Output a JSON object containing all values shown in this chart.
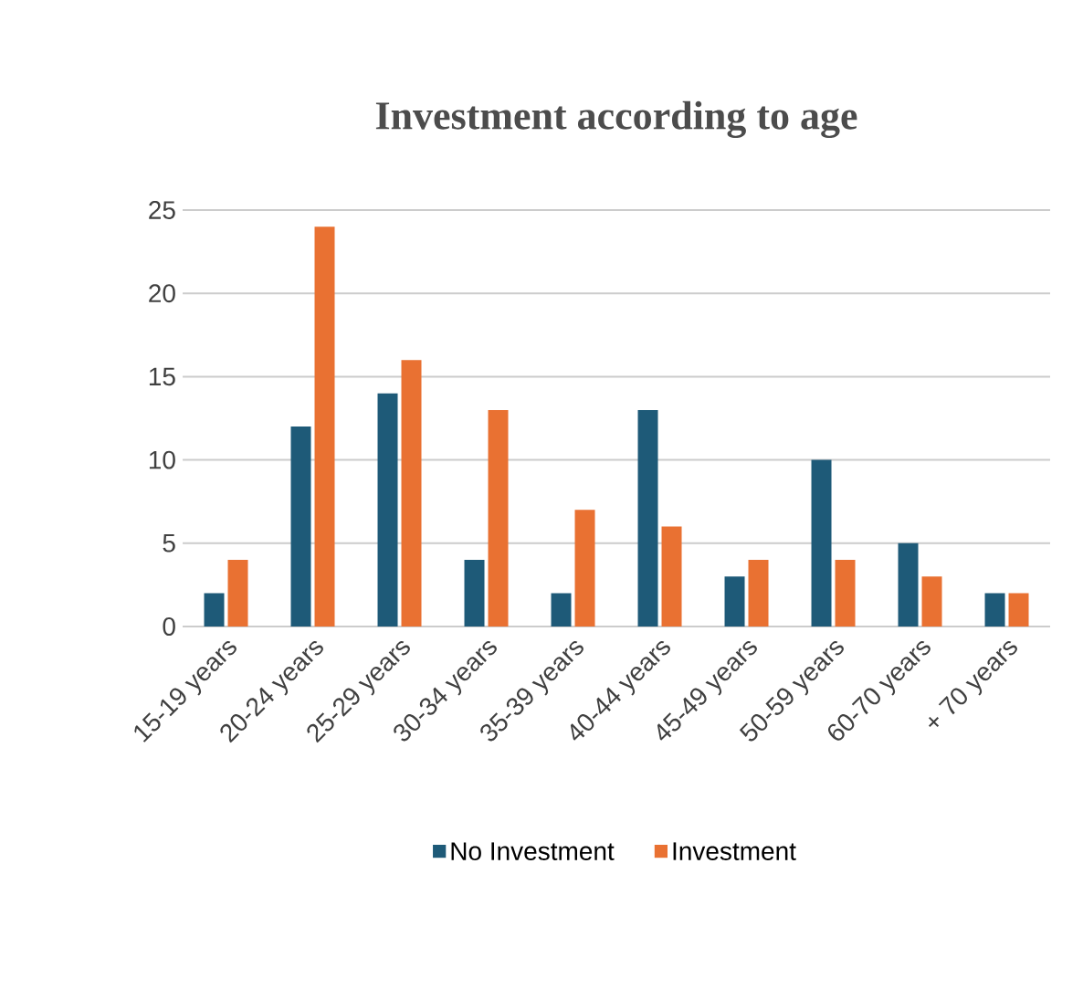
{
  "chart_data": {
    "type": "bar",
    "title": "Investment according to age",
    "categories": [
      "15-19 years",
      "20-24 years",
      "25-29 years",
      "30-34 years",
      "35-39 years",
      "40-44 years",
      "45-49 years",
      "50-59 years",
      "60-70 years",
      "+ 70 years"
    ],
    "series": [
      {
        "name": "No Investment",
        "color": "#1e5a78",
        "values": [
          2,
          12,
          14,
          4,
          2,
          13,
          3,
          10,
          5,
          2
        ]
      },
      {
        "name": "Investment",
        "color": "#e97132",
        "values": [
          4,
          24,
          16,
          13,
          7,
          6,
          4,
          4,
          3,
          2
        ]
      }
    ],
    "ylim": [
      0,
      25
    ],
    "yticks": [
      0,
      5,
      10,
      15,
      20,
      25
    ],
    "grid": "y",
    "legend": "bottom"
  }
}
